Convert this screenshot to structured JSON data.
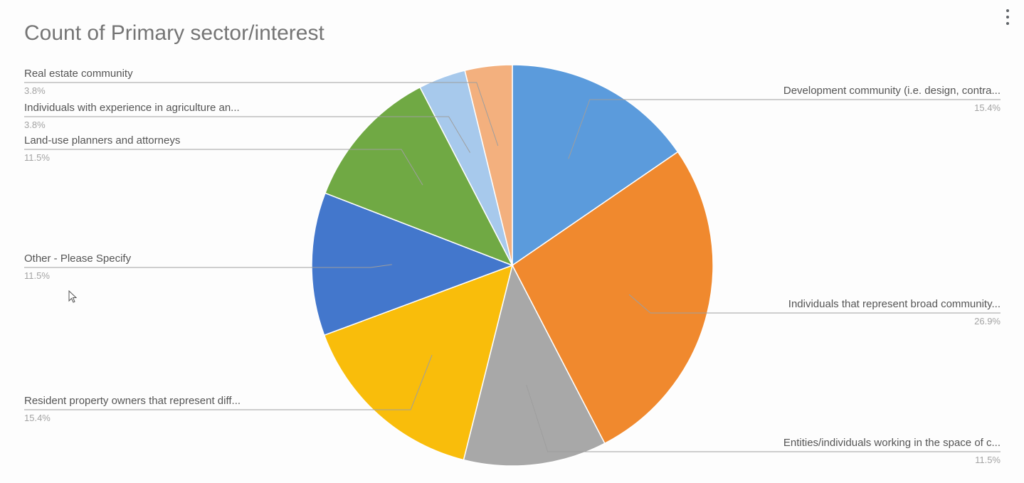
{
  "chart_data": {
    "type": "pie",
    "title": "Count of Primary sector/interest",
    "slices": [
      {
        "label": "Development community (i.e. design, contra...",
        "percent_label": "15.4%",
        "value": 15.4,
        "color": "#5b9bdc"
      },
      {
        "label": "Individuals that represent broad community...",
        "percent_label": "26.9%",
        "value": 26.9,
        "color": "#f0892e"
      },
      {
        "label": "Entities/individuals working in the space of c...",
        "percent_label": "11.5%",
        "value": 11.5,
        "color": "#a8a8a8"
      },
      {
        "label": "Resident property owners that represent diff...",
        "percent_label": "15.4%",
        "value": 15.4,
        "color": "#f9bd0b"
      },
      {
        "label": "Other - Please Specify",
        "percent_label": "11.5%",
        "value": 11.5,
        "color": "#4377cc"
      },
      {
        "label": "Land-use planners and attorneys",
        "percent_label": "11.5%",
        "value": 11.5,
        "color": "#70a944"
      },
      {
        "label": "Individuals with experience in agriculture an...",
        "percent_label": "3.8%",
        "value": 3.8,
        "color": "#a7c9ec"
      },
      {
        "label": "Real estate community",
        "percent_label": "3.8%",
        "value": 3.8,
        "color": "#f3b07e"
      }
    ],
    "start_angle": "12 o'clock, clockwise",
    "legend": "callout labels"
  }
}
